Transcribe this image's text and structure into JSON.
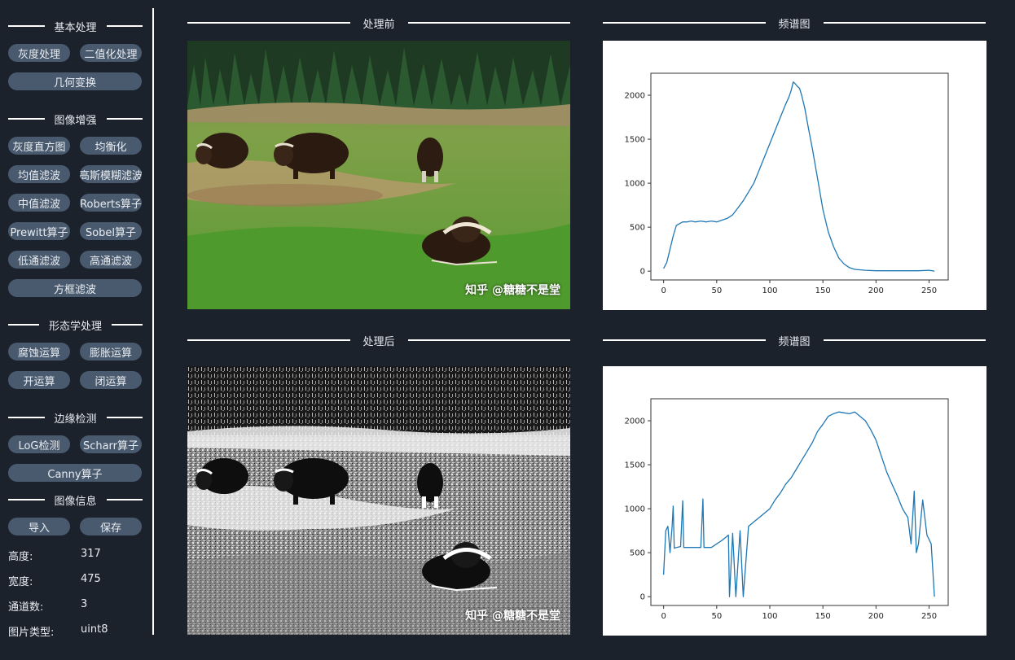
{
  "sidebar": {
    "basic": {
      "title": "基本处理",
      "buttons": [
        "灰度处理",
        "二值化处理",
        "几何变换"
      ]
    },
    "enhance": {
      "title": "图像增强",
      "buttons": [
        "灰度直方图",
        "均衡化",
        "均值滤波",
        "高斯模糊滤波",
        "中值滤波",
        "Roberts算子",
        "Prewitt算子",
        "Sobel算子",
        "低通滤波",
        "高通滤波",
        "方框滤波"
      ]
    },
    "morph": {
      "title": "形态学处理",
      "buttons": [
        "腐蚀运算",
        "膨胀运算",
        "开运算",
        "闭运算"
      ]
    },
    "edge": {
      "title": "边缘检测",
      "buttons": [
        "LoG检测",
        "Scharr算子",
        "Canny算子"
      ]
    },
    "info": {
      "title": "图像信息",
      "import_label": "导入",
      "save_label": "保存",
      "height_label": "高度:",
      "height_value": "317",
      "width_label": "宽度:",
      "width_value": "475",
      "channels_label": "通道数:",
      "channels_value": "3",
      "type_label": "图片类型:",
      "type_value": "uint8"
    }
  },
  "panels": {
    "before_title": "处理前",
    "after_title": "处理后",
    "spectrum_title_top": "频谱图",
    "spectrum_title_bottom": "频谱图",
    "watermark_top": "知乎 @糖糖不是堂",
    "watermark_bottom": "知乎 @糖糖不是堂"
  },
  "chart_data": [
    {
      "type": "line",
      "x_ticks": [
        "0",
        "50",
        "100",
        "150",
        "200",
        "250"
      ],
      "y_ticks": [
        "0",
        "500",
        "1000",
        "1500",
        "2000"
      ],
      "xlim": [
        -12,
        268
      ],
      "ylim": [
        -100,
        2250
      ],
      "color": "#1f77b4",
      "x": [
        0,
        3,
        6,
        9,
        12,
        15,
        18,
        22,
        26,
        30,
        35,
        40,
        45,
        50,
        55,
        60,
        65,
        70,
        75,
        80,
        85,
        90,
        95,
        100,
        105,
        110,
        115,
        118,
        120,
        122,
        124,
        126,
        128,
        130,
        133,
        136,
        140,
        145,
        150,
        155,
        160,
        165,
        170,
        175,
        180,
        190,
        200,
        220,
        240,
        250,
        255
      ],
      "y": [
        30,
        100,
        250,
        400,
        520,
        540,
        560,
        560,
        570,
        560,
        570,
        560,
        570,
        560,
        580,
        600,
        640,
        720,
        800,
        900,
        1000,
        1150,
        1300,
        1450,
        1600,
        1750,
        1900,
        1980,
        2050,
        2150,
        2130,
        2100,
        2080,
        2000,
        1850,
        1650,
        1400,
        1050,
        700,
        450,
        280,
        150,
        80,
        40,
        20,
        10,
        5,
        5,
        5,
        10,
        0
      ]
    },
    {
      "type": "line",
      "x_ticks": [
        "0",
        "50",
        "100",
        "150",
        "200",
        "250"
      ],
      "y_ticks": [
        "0",
        "500",
        "1000",
        "1500",
        "2000"
      ],
      "xlim": [
        -12,
        268
      ],
      "ylim": [
        -100,
        2250
      ],
      "color": "#1f77b4",
      "x": [
        0,
        2,
        4,
        6,
        8,
        9,
        10,
        12,
        16,
        18,
        19,
        20,
        25,
        30,
        35,
        37,
        38,
        39,
        45,
        50,
        55,
        60,
        61,
        62,
        65,
        68,
        72,
        75,
        80,
        85,
        90,
        95,
        100,
        105,
        110,
        115,
        120,
        125,
        130,
        135,
        140,
        145,
        150,
        155,
        160,
        165,
        170,
        175,
        180,
        185,
        190,
        195,
        200,
        205,
        210,
        215,
        220,
        225,
        230,
        233,
        236,
        238,
        240,
        244,
        248,
        252,
        255
      ],
      "y": [
        250,
        750,
        800,
        500,
        800,
        1030,
        550,
        560,
        570,
        1090,
        560,
        560,
        560,
        560,
        560,
        1110,
        560,
        560,
        560,
        600,
        640,
        690,
        700,
        0,
        720,
        0,
        750,
        0,
        800,
        850,
        900,
        950,
        1000,
        1100,
        1180,
        1280,
        1350,
        1450,
        1550,
        1650,
        1750,
        1880,
        1960,
        2050,
        2080,
        2100,
        2090,
        2080,
        2100,
        2050,
        2000,
        1900,
        1780,
        1600,
        1420,
        1280,
        1150,
        1000,
        900,
        600,
        1200,
        500,
        600,
        1100,
        700,
        600,
        0
      ]
    }
  ]
}
